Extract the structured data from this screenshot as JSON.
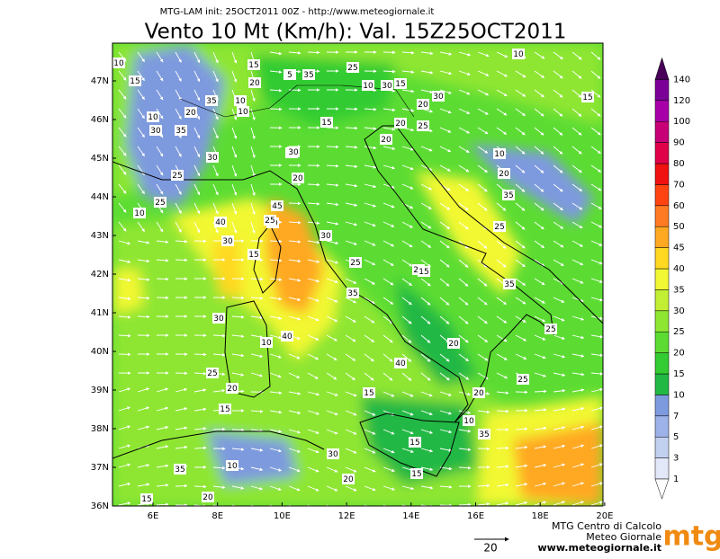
{
  "header": {
    "model_line": "MTG-LAM init: 25OCT2011 00Z - http://www.meteogiornale.it",
    "title": "Vento 10 Mt (Km/h): Val. 15Z25OCT2011"
  },
  "axes": {
    "lon_labels": [
      {
        "value": 6,
        "label": "6E"
      },
      {
        "value": 8,
        "label": "8E"
      },
      {
        "value": 10,
        "label": "10E"
      },
      {
        "value": 12,
        "label": "12E"
      },
      {
        "value": 14,
        "label": "14E"
      },
      {
        "value": 16,
        "label": "16E"
      },
      {
        "value": 18,
        "label": "18E"
      },
      {
        "value": 20,
        "label": "20E"
      }
    ],
    "lat_labels": [
      {
        "value": 47,
        "label": "47N"
      },
      {
        "value": 46,
        "label": "46N"
      },
      {
        "value": 45,
        "label": "45N"
      },
      {
        "value": 44,
        "label": "44N"
      },
      {
        "value": 43,
        "label": "43N"
      },
      {
        "value": 42,
        "label": "42N"
      },
      {
        "value": 41,
        "label": "41N"
      },
      {
        "value": 40,
        "label": "40N"
      },
      {
        "value": 39,
        "label": "39N"
      },
      {
        "value": 38,
        "label": "38N"
      },
      {
        "value": 37,
        "label": "37N"
      },
      {
        "value": 36,
        "label": "36N"
      }
    ]
  },
  "colorbar": {
    "levels": [
      1,
      3,
      5,
      7,
      10,
      15,
      20,
      25,
      30,
      35,
      40,
      45,
      50,
      60,
      70,
      80,
      90,
      100,
      120,
      140
    ],
    "colors": [
      "#e2e8f8",
      "#c2d0f0",
      "#9cb2e8",
      "#7e9ade",
      "#22b844",
      "#33cc33",
      "#5cdc33",
      "#8ee633",
      "#c2ef33",
      "#f2f833",
      "#ffd822",
      "#ffa822",
      "#ff7a22",
      "#ff4411",
      "#f01111",
      "#e0004a",
      "#c80078",
      "#a800a8",
      "#7a0098",
      "#480058"
    ]
  },
  "contour_labels": [
    10,
    15,
    10,
    30,
    25,
    35,
    25,
    10,
    30,
    20,
    35,
    10,
    10,
    15,
    20,
    5,
    35,
    15,
    25,
    15,
    10,
    20,
    30,
    10,
    15,
    20,
    25,
    20,
    30,
    45,
    20,
    25,
    40,
    30,
    15,
    30,
    25,
    20,
    35,
    15,
    35,
    25,
    20,
    40,
    10,
    15,
    35,
    20,
    25,
    10,
    20,
    15,
    30,
    20,
    35,
    15,
    40,
    15,
    20,
    25,
    30,
    10,
    25,
    35,
    10,
    20,
    20,
    25,
    30,
    15
  ],
  "vector_scale": 20,
  "footer": {
    "line1": "MTG Centro di Calcolo",
    "line2": "Meteo Giornale",
    "url": "www.meteogiornale.it",
    "logo": "mtg"
  }
}
